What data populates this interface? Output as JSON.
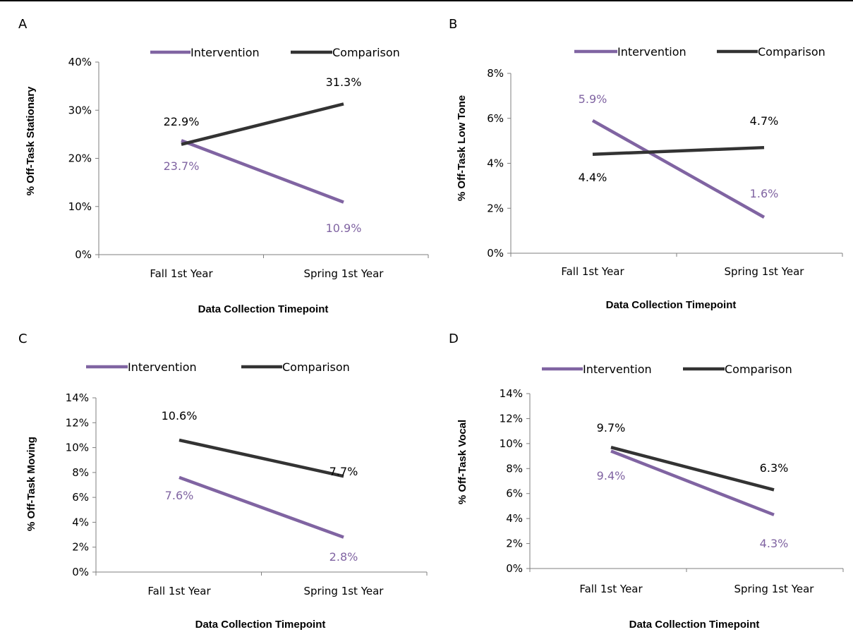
{
  "chart_data": [
    {
      "panel": "A",
      "type": "line",
      "categories": [
        "Fall 1st Year",
        "Spring 1st Year"
      ],
      "series": [
        {
          "name": "Intervention",
          "values": [
            23.7,
            10.9
          ],
          "labels": [
            "23.7%",
            "10.9%"
          ],
          "color": "#8064a2"
        },
        {
          "name": "Comparison",
          "values": [
            22.9,
            31.3
          ],
          "labels": [
            "22.9%",
            "31.3%"
          ],
          "color": "#333333"
        }
      ],
      "xlabel": "Data Collection Timepoint",
      "ylabel": "% Off-Task Stationary",
      "ylim": [
        0,
        40
      ],
      "yticks": [
        "0%",
        "10%",
        "20%",
        "30%",
        "40%"
      ],
      "legend_position": "top"
    },
    {
      "panel": "B",
      "type": "line",
      "categories": [
        "Fall 1st Year",
        "Spring 1st Year"
      ],
      "series": [
        {
          "name": "Intervention",
          "values": [
            5.9,
            1.6
          ],
          "labels": [
            "5.9%",
            "1.6%"
          ],
          "color": "#8064a2"
        },
        {
          "name": "Comparison",
          "values": [
            4.4,
            4.7
          ],
          "labels": [
            "4.4%",
            "4.7%"
          ],
          "color": "#333333"
        }
      ],
      "xlabel": "Data Collection Timepoint",
      "ylabel": "% Off-Task Low Tone",
      "ylim": [
        0,
        8
      ],
      "yticks": [
        "0%",
        "2%",
        "4%",
        "6%",
        "8%"
      ],
      "legend_position": "top"
    },
    {
      "panel": "C",
      "type": "line",
      "categories": [
        "Fall 1st Year",
        "Spring 1st Year"
      ],
      "series": [
        {
          "name": "Intervention",
          "values": [
            7.6,
            2.8
          ],
          "labels": [
            "7.6%",
            "2.8%"
          ],
          "color": "#8064a2"
        },
        {
          "name": "Comparison",
          "values": [
            10.6,
            7.7
          ],
          "labels": [
            "10.6%",
            "7.7%"
          ],
          "color": "#333333"
        }
      ],
      "xlabel": "Data Collection Timepoint",
      "ylabel": "% Off-Task Moving",
      "ylim": [
        0,
        14
      ],
      "yticks": [
        "0%",
        "2%",
        "4%",
        "6%",
        "8%",
        "10%",
        "12%",
        "14%"
      ],
      "legend_position": "top"
    },
    {
      "panel": "D",
      "type": "line",
      "categories": [
        "Fall 1st Year",
        "Spring 1st Year"
      ],
      "series": [
        {
          "name": "Intervention",
          "values": [
            9.4,
            4.3
          ],
          "labels": [
            "9.4%",
            "4.3%"
          ],
          "color": "#8064a2"
        },
        {
          "name": "Comparison",
          "values": [
            9.7,
            6.3
          ],
          "labels": [
            "9.7%",
            "6.3%"
          ],
          "color": "#333333"
        }
      ],
      "xlabel": "Data Collection Timepoint",
      "ylabel": "% Off-Task Vocal",
      "ylim": [
        0,
        14
      ],
      "yticks": [
        "0%",
        "2%",
        "4%",
        "6%",
        "8%",
        "10%",
        "12%",
        "14%"
      ],
      "legend_position": "top"
    }
  ]
}
